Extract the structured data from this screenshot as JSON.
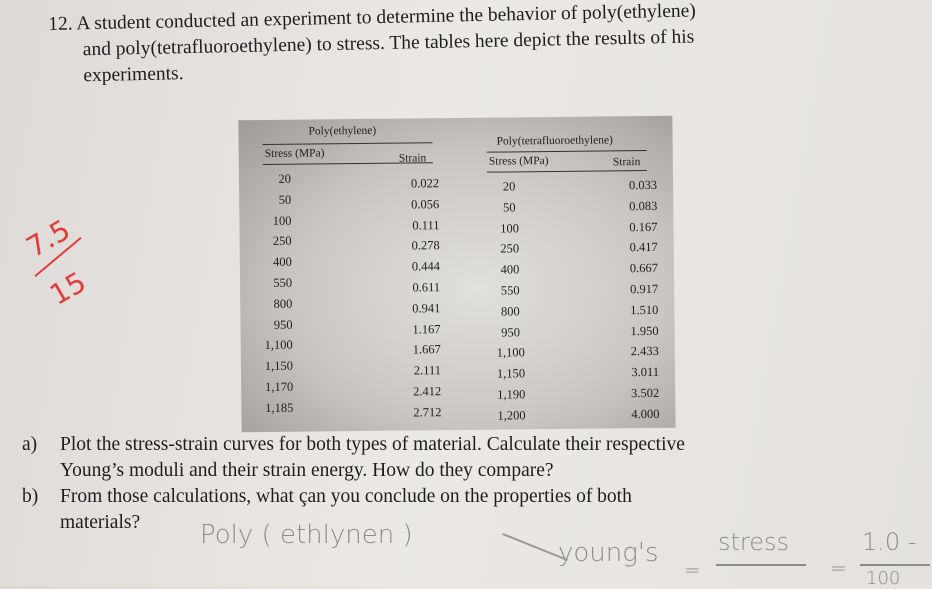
{
  "question": {
    "number": "12.",
    "lines": [
      "A student conducted an experiment to determine the behavior of poly(ethylene)",
      "and poly(tetrafluoroethylene) to stress. The tables here depict the results of his",
      "experiments."
    ]
  },
  "tables": [
    {
      "title": "Poly(ethylene)",
      "headers": [
        "Stress (MPa)",
        "Strain"
      ],
      "stress": [
        "20",
        "50",
        "100",
        "250",
        "400",
        "550",
        "800",
        "950",
        "1,100",
        "1,150",
        "1,170",
        "1,185"
      ],
      "strain": [
        "0.022",
        "0.056",
        "0.111",
        "0.278",
        "0.444",
        "0.611",
        "0.941",
        "1.167",
        "1.667",
        "2.111",
        "2.412",
        "2.712"
      ]
    },
    {
      "title": "Poly(tetrafluoroethylene)",
      "headers": [
        "Stress (MPa)",
        "Strain"
      ],
      "stress": [
        "20",
        "50",
        "100",
        "250",
        "400",
        "550",
        "800",
        "950",
        "1,100",
        "1,150",
        "1,190",
        "1,200"
      ],
      "strain": [
        "0.033",
        "0.083",
        "0.167",
        "0.417",
        "0.667",
        "0.917",
        "1.510",
        "1.950",
        "2.433",
        "3.011",
        "3.502",
        "4.000"
      ]
    }
  ],
  "parts": [
    {
      "label": "a)",
      "lines": [
        "Plot the stress-strain curves for both types of material. Calculate their respective",
        "Young’s moduli and their strain energy. How do they compare?"
      ]
    },
    {
      "label": "b)",
      "lines": [
        "From those calculations, what çan you conclude on the properties of both",
        "materials?"
      ]
    }
  ],
  "handwriting": {
    "grade_top": "7.5",
    "grade_bottom": "15",
    "answer": "Poly ( ethlynen )",
    "youngs": "young's",
    "equals": "=",
    "stress": "stress",
    "value": "1.0 -",
    "denominator": "100",
    "grade_color": "#e43a3a"
  }
}
